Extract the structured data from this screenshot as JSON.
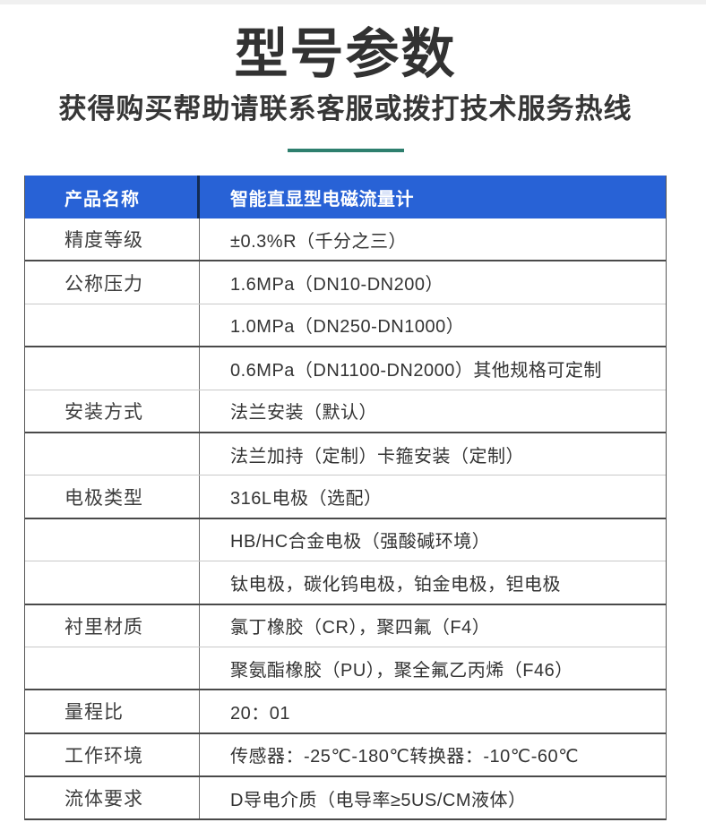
{
  "page": {
    "title": "型号参数",
    "subtitle": "获得购买帮助请联系客服或拨打技术服务热线"
  },
  "colors": {
    "header_bg": "#2862d6",
    "header_text": "#ffffff",
    "accent_underline": "#2e7f6e",
    "dark_border": "#4a4a4a",
    "light_border": "#c9c9c9",
    "top_strip": "#f0f0f0"
  },
  "table": {
    "header": {
      "label": "产品名称",
      "value": "智能直显型电磁流量计"
    },
    "rows": [
      {
        "label": "精度等级",
        "value": "±0.3%R（千分之三）",
        "border": "dark"
      },
      {
        "label": "公称压力",
        "value": "1.6MPa（DN10-DN200）",
        "border": "light"
      },
      {
        "label": "",
        "value": "1.0MPa（DN250-DN1000）",
        "border": "dark"
      },
      {
        "label": "",
        "value": "0.6MPa（DN1100-DN2000）其他规格可定制",
        "border": "light"
      },
      {
        "label": "安装方式",
        "value": "法兰安装（默认）",
        "border": "dark"
      },
      {
        "label": "",
        "value": "法兰加持（定制）卡箍安装（定制）",
        "border": "light"
      },
      {
        "label": "电极类型",
        "value": "316L电极（选配）",
        "border": "dark"
      },
      {
        "label": "",
        "value": "HB/HC合金电极（强酸碱环境）",
        "border": "light"
      },
      {
        "label": "",
        "value": "钛电极，碳化钨电极，铂金电极，钽电极",
        "border": "dark"
      },
      {
        "label": "衬里材质",
        "value": "氯丁橡胶（CR），聚四氟（F4）",
        "border": "light"
      },
      {
        "label": "",
        "value": "聚氨酯橡胶（PU），聚全氟乙丙烯（F46）",
        "border": "dark"
      },
      {
        "label": "量程比",
        "value": "20：01",
        "border": "dark"
      },
      {
        "label": "工作环境",
        "value": "传感器：-25℃-180℃转换器：-10℃-60℃",
        "border": "dark"
      },
      {
        "label": "流体要求",
        "value": "D导电介质（电导率≥5US/CM液体）",
        "border": "dark"
      }
    ]
  }
}
